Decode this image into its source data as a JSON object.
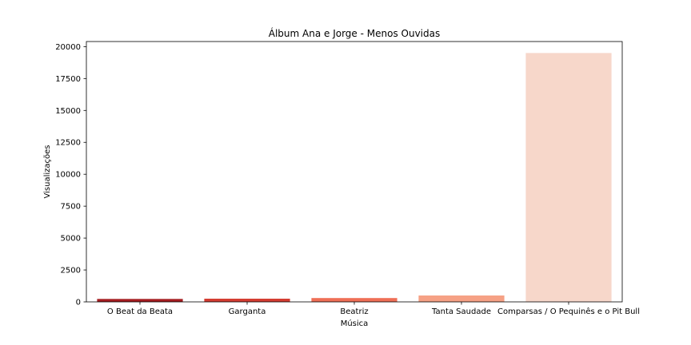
{
  "chart_data": {
    "type": "bar",
    "title": "Álbum Ana e Jorge - Menos Ouvidas",
    "xlabel": "Música",
    "ylabel": "Visualizações",
    "categories": [
      "O Beat da Beata",
      "Garganta",
      "Beatriz",
      "Tanta Saudade",
      "Comparsas / O Pequinês e o Pit Bull"
    ],
    "values": [
      230,
      250,
      300,
      500,
      19500
    ],
    "colors": [
      "#a51d21",
      "#d43d32",
      "#ef6f56",
      "#f6a185",
      "#f7d7ca"
    ],
    "ylim": [
      0,
      20400
    ],
    "yticks": [
      0,
      2500,
      5000,
      7500,
      10000,
      12500,
      15000,
      17500,
      20000
    ],
    "grid": false,
    "legend": "none"
  }
}
